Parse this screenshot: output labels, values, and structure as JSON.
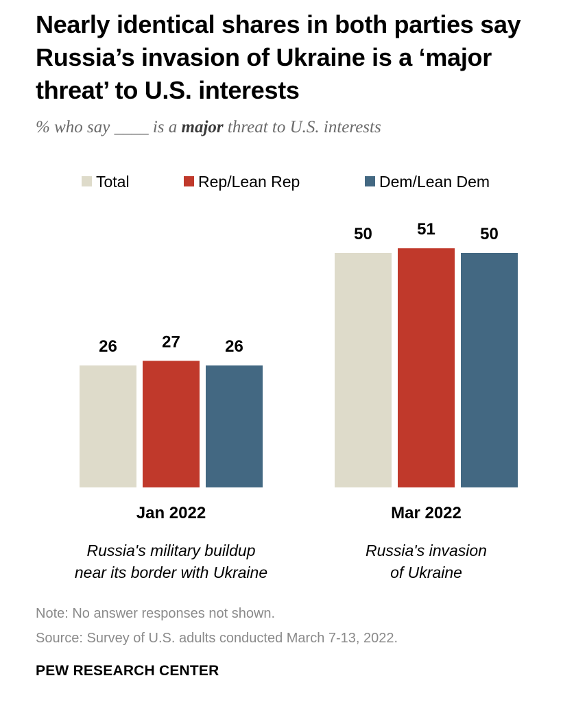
{
  "title": "Nearly identical shares in both parties say Russia’s invasion of Ukraine is a ‘major threat’ to U.S. interests",
  "subtitle": {
    "prefix": "% who say ____ is a ",
    "emphasis": "major",
    "suffix": " threat to U.S. interests"
  },
  "chart_data": {
    "type": "bar",
    "title": "Nearly identical shares in both parties say Russia’s invasion of Ukraine is a ‘major threat’ to U.S. interests",
    "categories": [
      "Jan 2022",
      "Mar 2022"
    ],
    "category_descriptions": [
      [
        "Russia's military buildup",
        "near its border with Ukraine"
      ],
      [
        "Russia's invasion",
        "of Ukraine"
      ]
    ],
    "series": [
      {
        "name": "Total",
        "color": "#dedbca",
        "values": [
          26,
          50
        ]
      },
      {
        "name": "Rep/Lean Rep",
        "color": "#c0392b",
        "values": [
          27,
          51
        ]
      },
      {
        "name": "Dem/Lean Dem",
        "color": "#436882",
        "values": [
          26,
          50
        ]
      }
    ],
    "legend_position": "top",
    "grid": false,
    "ylim": [
      0,
      55
    ]
  },
  "notes": [
    "Note: No answer responses not shown.",
    "Source: Survey of U.S. adults conducted March 7-13, 2022."
  ],
  "brand": "PEW RESEARCH CENTER"
}
